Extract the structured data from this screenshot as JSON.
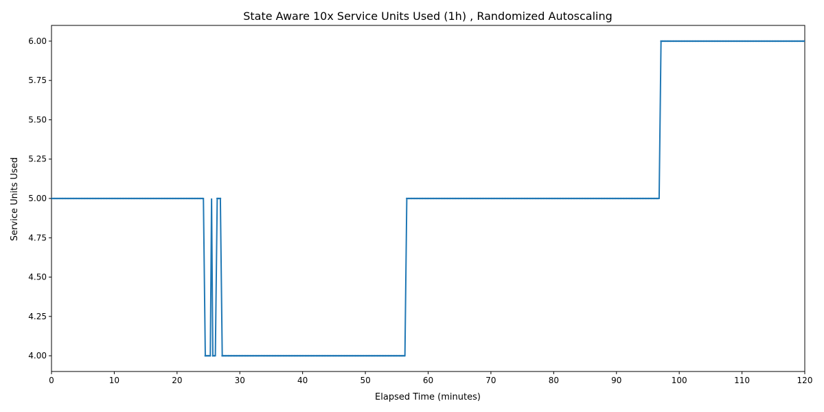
{
  "chart_data": {
    "type": "line",
    "title": "State Aware 10x Service Units Used (1h) , Randomized Autoscaling",
    "xlabel": "Elapsed Time (minutes)",
    "ylabel": "Service Units Used",
    "xlim": [
      0,
      120
    ],
    "ylim": [
      3.9,
      6.1
    ],
    "x_ticks": [
      0,
      10,
      20,
      30,
      40,
      50,
      60,
      70,
      80,
      90,
      100,
      110,
      120
    ],
    "y_ticks": [
      4.0,
      4.25,
      4.5,
      4.75,
      5.0,
      5.25,
      5.5,
      5.75,
      6.0
    ],
    "x_tick_labels": [
      "0",
      "10",
      "20",
      "30",
      "40",
      "50",
      "60",
      "70",
      "80",
      "90",
      "100",
      "110",
      "120"
    ],
    "y_tick_labels": [
      "4.00",
      "4.25",
      "4.50",
      "4.75",
      "5.00",
      "5.25",
      "5.50",
      "5.75",
      "6.00"
    ],
    "grid": false,
    "line_color": "#1f77b4",
    "series": [
      {
        "x": [
          0,
          24.2,
          24.5,
          25.3,
          25.5,
          25.7,
          26.1,
          26.4,
          26.9,
          27.2,
          56.3,
          56.6,
          96.8,
          97.1,
          120
        ],
        "values": [
          5,
          5,
          4,
          4,
          5,
          4,
          4,
          5,
          5,
          4,
          4,
          5,
          5,
          6,
          6
        ]
      }
    ]
  }
}
